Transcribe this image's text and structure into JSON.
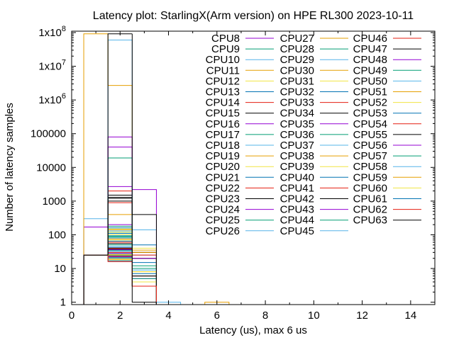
{
  "chart_data": {
    "type": "histogram",
    "title": "Latency plot: StarlingX(Arm version) on HPE RL300 2023-10-11",
    "xlabel": "Latency (us), max 6 us",
    "ylabel": "Number of latency samples",
    "xlim": [
      0,
      15
    ],
    "ylim": [
      0.85,
      110000000
    ],
    "yscale": "log",
    "x_ticks": [
      "0",
      "2",
      "4",
      "6",
      "8",
      "10",
      "12",
      "14"
    ],
    "y_ticks": [
      "1",
      "10",
      "100",
      "1000",
      "10000",
      "100000",
      "1x10^6",
      "1x10^7",
      "1x10^8"
    ],
    "grid": false,
    "legend_position": "top-right",
    "bins": [
      1,
      2,
      3,
      4,
      5,
      6
    ],
    "series": [
      {
        "name": "CPU8",
        "color": "#9400d3",
        "values": [
          170,
          200,
          20,
          null,
          null,
          null
        ]
      },
      {
        "name": "CPU9",
        "color": "#009e73",
        "values": [
          25,
          180,
          6,
          null,
          null,
          null
        ]
      },
      {
        "name": "CPU10",
        "color": "#56b4e9",
        "values": [
          300,
          60000000,
          140,
          1,
          null,
          null
        ]
      },
      {
        "name": "CPU11",
        "color": "#e69f00",
        "values": [
          92000000,
          2700000,
          30,
          null,
          null,
          1
        ]
      },
      {
        "name": "CPU12",
        "color": "#f0e442",
        "values": [
          25,
          150,
          40,
          null,
          null,
          null
        ]
      },
      {
        "name": "CPU13",
        "color": "#0072b2",
        "values": [
          25,
          160,
          50,
          null,
          null,
          null
        ]
      },
      {
        "name": "CPU14",
        "color": "#e51e10",
        "values": [
          25,
          2000,
          30,
          null,
          null,
          null
        ]
      },
      {
        "name": "CPU15",
        "color": "#000000",
        "values": [
          25,
          1500,
          30,
          null,
          null,
          null
        ]
      },
      {
        "name": "CPU16",
        "color": "#9400d3",
        "values": [
          25,
          80000,
          2200,
          null,
          null,
          null
        ]
      },
      {
        "name": "CPU17",
        "color": "#009e73",
        "values": [
          25,
          120,
          20,
          null,
          null,
          null
        ]
      },
      {
        "name": "CPU18",
        "color": "#56b4e9",
        "values": [
          25,
          130,
          25,
          null,
          null,
          null
        ]
      },
      {
        "name": "CPU19",
        "color": "#e69f00",
        "values": [
          25,
          140,
          30,
          null,
          null,
          null
        ]
      },
      {
        "name": "CPU20",
        "color": "#f0e442",
        "values": [
          25,
          100,
          20,
          null,
          null,
          null
        ]
      },
      {
        "name": "CPU21",
        "color": "#0072b2",
        "values": [
          25,
          110,
          15,
          null,
          null,
          null
        ]
      },
      {
        "name": "CPU22",
        "color": "#e51e10",
        "values": [
          25,
          900,
          25,
          null,
          null,
          null
        ]
      },
      {
        "name": "CPU23",
        "color": "#000000",
        "values": [
          25,
          1200,
          20,
          null,
          null,
          null
        ]
      },
      {
        "name": "CPU24",
        "color": "#9400d3",
        "values": [
          25,
          40000,
          20,
          null,
          null,
          null
        ]
      },
      {
        "name": "CPU25",
        "color": "#009e73",
        "values": [
          25,
          90,
          12,
          null,
          null,
          null
        ]
      },
      {
        "name": "CPU26",
        "color": "#56b4e9",
        "values": [
          25,
          95,
          10,
          null,
          null,
          null
        ]
      },
      {
        "name": "CPU27",
        "color": "#e69f00",
        "values": [
          25,
          400,
          35,
          null,
          null,
          null
        ]
      },
      {
        "name": "CPU28",
        "color": "#009e73",
        "values": [
          25,
          85,
          10,
          null,
          null,
          null
        ]
      },
      {
        "name": "CPU29",
        "color": "#56b4e9",
        "values": [
          25,
          80,
          9,
          null,
          null,
          null
        ]
      },
      {
        "name": "CPU30",
        "color": "#e69f00",
        "values": [
          25,
          75,
          8,
          null,
          null,
          null
        ]
      },
      {
        "name": "CPU31",
        "color": "#f0e442",
        "values": [
          25,
          70,
          8,
          null,
          null,
          null
        ]
      },
      {
        "name": "CPU32",
        "color": "#0072b2",
        "values": [
          25,
          65,
          7,
          null,
          null,
          null
        ]
      },
      {
        "name": "CPU33",
        "color": "#e51e10",
        "values": [
          25,
          60,
          6,
          null,
          null,
          null
        ]
      },
      {
        "name": "CPU34",
        "color": "#000000",
        "values": [
          25,
          55,
          6,
          null,
          null,
          null
        ]
      },
      {
        "name": "CPU35",
        "color": "#9400d3",
        "values": [
          25,
          2700,
          5,
          null,
          null,
          null
        ]
      },
      {
        "name": "CPU36",
        "color": "#009e73",
        "values": [
          25,
          50,
          5,
          null,
          null,
          null
        ]
      },
      {
        "name": "CPU37",
        "color": "#56b4e9",
        "values": [
          25,
          45,
          4,
          null,
          null,
          null
        ]
      },
      {
        "name": "CPU38",
        "color": "#e69f00",
        "values": [
          25,
          140,
          4,
          null,
          null,
          null
        ]
      },
      {
        "name": "CPU39",
        "color": "#f0e442",
        "values": [
          25,
          120,
          4,
          null,
          null,
          null
        ]
      },
      {
        "name": "CPU40",
        "color": "#0072b2",
        "values": [
          25,
          42,
          3,
          null,
          null,
          null
        ]
      },
      {
        "name": "CPU41",
        "color": "#e51e10",
        "values": [
          25,
          40,
          3,
          null,
          null,
          null
        ]
      },
      {
        "name": "CPU42",
        "color": "#000000",
        "values": [
          25,
          38,
          3,
          null,
          null,
          null
        ]
      },
      {
        "name": "CPU43",
        "color": "#9400d3",
        "values": [
          25,
          36,
          3,
          null,
          null,
          null
        ]
      },
      {
        "name": "CPU44",
        "color": "#009e73",
        "values": [
          25,
          34,
          3,
          null,
          null,
          null
        ]
      },
      {
        "name": "CPU45",
        "color": "#56b4e9",
        "values": [
          25,
          32,
          3,
          null,
          null,
          null
        ]
      },
      {
        "name": "CPU46",
        "color": "#e51e10",
        "values": [
          25,
          30,
          3,
          null,
          null,
          null
        ]
      },
      {
        "name": "CPU47",
        "color": "#000000",
        "values": [
          25,
          1300,
          3,
          null,
          null,
          null
        ]
      },
      {
        "name": "CPU48",
        "color": "#9400d3",
        "values": [
          25,
          28,
          3,
          null,
          null,
          null
        ]
      },
      {
        "name": "CPU49",
        "color": "#009e73",
        "values": [
          25,
          19000,
          3,
          null,
          null,
          null
        ]
      },
      {
        "name": "CPU50",
        "color": "#56b4e9",
        "values": [
          25,
          27,
          3,
          null,
          null,
          null
        ]
      },
      {
        "name": "CPU51",
        "color": "#e69f00",
        "values": [
          25,
          26,
          3,
          null,
          null,
          null
        ]
      },
      {
        "name": "CPU52",
        "color": "#f0e442",
        "values": [
          25,
          25,
          3,
          null,
          null,
          null
        ]
      },
      {
        "name": "CPU53",
        "color": "#0072b2",
        "values": [
          25,
          24,
          3,
          null,
          null,
          null
        ]
      },
      {
        "name": "CPU54",
        "color": "#e51e10",
        "values": [
          25,
          23,
          3,
          null,
          null,
          null
        ]
      },
      {
        "name": "CPU55",
        "color": "#000000",
        "values": [
          25,
          1000,
          400,
          null,
          null,
          null
        ]
      },
      {
        "name": "CPU56",
        "color": "#9400d3",
        "values": [
          25,
          22,
          3,
          null,
          null,
          null
        ]
      },
      {
        "name": "CPU57",
        "color": "#009e73",
        "values": [
          25,
          21,
          3,
          null,
          null,
          null
        ]
      },
      {
        "name": "CPU58",
        "color": "#56b4e9",
        "values": [
          25,
          20,
          3,
          null,
          null,
          null
        ]
      },
      {
        "name": "CPU59",
        "color": "#e69f00",
        "values": [
          25,
          19,
          3,
          null,
          null,
          null
        ]
      },
      {
        "name": "CPU60",
        "color": "#f0e442",
        "values": [
          25,
          18,
          3,
          null,
          null,
          null
        ]
      },
      {
        "name": "CPU61",
        "color": "#0072b2",
        "values": [
          25,
          17,
          3,
          null,
          null,
          null
        ]
      },
      {
        "name": "CPU62",
        "color": "#e51e10",
        "values": [
          25,
          16,
          3,
          null,
          null,
          null
        ]
      },
      {
        "name": "CPU63",
        "color": "#000000",
        "values": [
          25,
          92000000,
          1,
          null,
          null,
          null
        ]
      }
    ]
  }
}
